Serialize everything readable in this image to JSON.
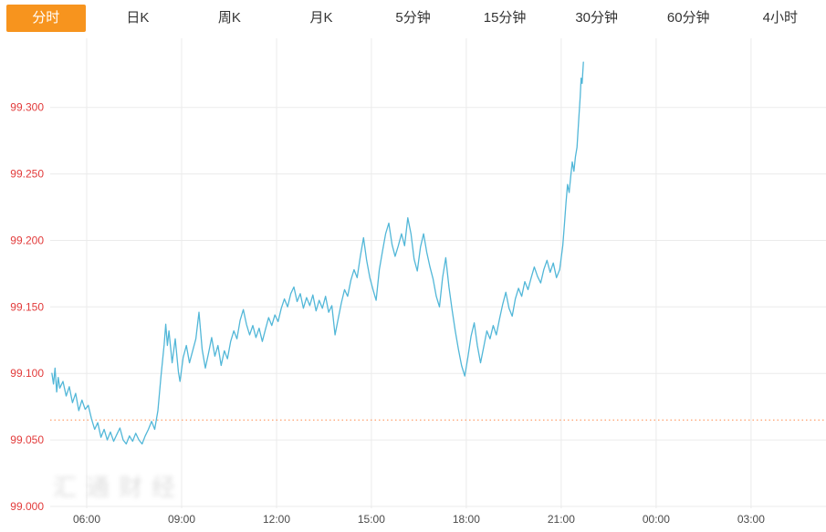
{
  "tabs": {
    "items": [
      {
        "name": "tab-timeline",
        "label": "分时",
        "active": true
      },
      {
        "name": "tab-day-k",
        "label": "日K",
        "active": false
      },
      {
        "name": "tab-week-k",
        "label": "周K",
        "active": false
      },
      {
        "name": "tab-month-k",
        "label": "月K",
        "active": false
      },
      {
        "name": "tab-5min",
        "label": "5分钟",
        "active": false
      },
      {
        "name": "tab-15min",
        "label": "15分钟",
        "active": false
      },
      {
        "name": "tab-30min",
        "label": "30分钟",
        "active": false
      },
      {
        "name": "tab-60min",
        "label": "60分钟",
        "active": false
      },
      {
        "name": "tab-4hour",
        "label": "4小时",
        "active": false
      }
    ]
  },
  "colors": {
    "accent_orange": "#f7941e",
    "y_label_red": "#e23b3b",
    "x_label": "#4a4a4a",
    "grid": "#ebebeb",
    "line_blue": "#52b7d8",
    "ref_dotted": "#ff8a4b"
  },
  "watermark": {
    "text": "汇通财经"
  },
  "chart_data": {
    "type": "line",
    "title": "",
    "xlabel": "",
    "ylabel": "",
    "grid": true,
    "x_unit": "hour-of-day (decimal, values > 24 are next day)",
    "xlim": [
      4.846,
      29.37
    ],
    "ylim": [
      99.0,
      99.343
    ],
    "x_ticks": [
      {
        "t": 6,
        "label": "06:00"
      },
      {
        "t": 9,
        "label": "09:00"
      },
      {
        "t": 12,
        "label": "12:00"
      },
      {
        "t": 15,
        "label": "15:00"
      },
      {
        "t": 18,
        "label": "18:00"
      },
      {
        "t": 21,
        "label": "21:00"
      },
      {
        "t": 24,
        "label": "00:00"
      },
      {
        "t": 27,
        "label": "03:00"
      }
    ],
    "y_ticks": [
      99.0,
      99.05,
      99.1,
      99.15,
      99.2,
      99.25,
      99.3
    ],
    "y_tick_labels": [
      "99.000",
      "99.050",
      "99.100",
      "99.150",
      "99.200",
      "99.250",
      "99.300"
    ],
    "reference_line": {
      "value": 99.065,
      "style": "dotted",
      "color": "#ff8a4b"
    },
    "series": [
      {
        "name": "price",
        "color": "#52b7d8",
        "points": [
          [
            4.9,
            99.1
          ],
          [
            4.95,
            99.092
          ],
          [
            5.0,
            99.104
          ],
          [
            5.05,
            99.086
          ],
          [
            5.1,
            99.097
          ],
          [
            5.15,
            99.089
          ],
          [
            5.25,
            99.094
          ],
          [
            5.35,
            99.083
          ],
          [
            5.45,
            99.09
          ],
          [
            5.55,
            99.078
          ],
          [
            5.65,
            99.085
          ],
          [
            5.75,
            99.072
          ],
          [
            5.85,
            99.08
          ],
          [
            5.95,
            99.073
          ],
          [
            6.05,
            99.076
          ],
          [
            6.15,
            99.066
          ],
          [
            6.25,
            99.058
          ],
          [
            6.35,
            99.063
          ],
          [
            6.45,
            99.052
          ],
          [
            6.55,
            99.058
          ],
          [
            6.65,
            99.05
          ],
          [
            6.75,
            99.056
          ],
          [
            6.85,
            99.049
          ],
          [
            6.95,
            99.054
          ],
          [
            7.05,
            99.059
          ],
          [
            7.15,
            99.05
          ],
          [
            7.25,
            99.047
          ],
          [
            7.35,
            99.053
          ],
          [
            7.45,
            99.049
          ],
          [
            7.55,
            99.055
          ],
          [
            7.65,
            99.05
          ],
          [
            7.75,
            99.047
          ],
          [
            7.85,
            99.053
          ],
          [
            7.95,
            99.058
          ],
          [
            8.05,
            99.064
          ],
          [
            8.15,
            99.058
          ],
          [
            8.25,
            99.072
          ],
          [
            8.35,
            99.098
          ],
          [
            8.45,
            99.122
          ],
          [
            8.5,
            99.137
          ],
          [
            8.55,
            99.121
          ],
          [
            8.6,
            99.132
          ],
          [
            8.7,
            99.108
          ],
          [
            8.8,
            99.126
          ],
          [
            8.9,
            99.101
          ],
          [
            8.95,
            99.094
          ],
          [
            9.05,
            99.112
          ],
          [
            9.15,
            99.121
          ],
          [
            9.25,
            99.108
          ],
          [
            9.35,
            99.117
          ],
          [
            9.45,
            99.126
          ],
          [
            9.55,
            99.146
          ],
          [
            9.65,
            99.118
          ],
          [
            9.75,
            99.104
          ],
          [
            9.85,
            99.115
          ],
          [
            9.95,
            99.127
          ],
          [
            10.05,
            99.113
          ],
          [
            10.15,
            99.121
          ],
          [
            10.25,
            99.106
          ],
          [
            10.35,
            99.117
          ],
          [
            10.45,
            99.111
          ],
          [
            10.55,
            99.124
          ],
          [
            10.65,
            99.132
          ],
          [
            10.75,
            99.126
          ],
          [
            10.85,
            99.14
          ],
          [
            10.95,
            99.148
          ],
          [
            11.05,
            99.137
          ],
          [
            11.15,
            99.129
          ],
          [
            11.25,
            99.136
          ],
          [
            11.35,
            99.127
          ],
          [
            11.45,
            99.134
          ],
          [
            11.55,
            99.124
          ],
          [
            11.65,
            99.133
          ],
          [
            11.75,
            99.142
          ],
          [
            11.85,
            99.136
          ],
          [
            11.95,
            99.144
          ],
          [
            12.05,
            99.139
          ],
          [
            12.15,
            99.149
          ],
          [
            12.25,
            99.156
          ],
          [
            12.35,
            99.15
          ],
          [
            12.45,
            99.16
          ],
          [
            12.55,
            99.165
          ],
          [
            12.65,
            99.154
          ],
          [
            12.75,
            99.16
          ],
          [
            12.85,
            99.149
          ],
          [
            12.95,
            99.157
          ],
          [
            13.05,
            99.151
          ],
          [
            13.15,
            99.159
          ],
          [
            13.25,
            99.147
          ],
          [
            13.35,
            99.155
          ],
          [
            13.45,
            99.149
          ],
          [
            13.55,
            99.158
          ],
          [
            13.65,
            99.146
          ],
          [
            13.75,
            99.151
          ],
          [
            13.85,
            99.129
          ],
          [
            13.95,
            99.141
          ],
          [
            14.05,
            99.153
          ],
          [
            14.15,
            99.163
          ],
          [
            14.25,
            99.158
          ],
          [
            14.35,
            99.17
          ],
          [
            14.45,
            99.178
          ],
          [
            14.55,
            99.172
          ],
          [
            14.65,
            99.188
          ],
          [
            14.75,
            99.202
          ],
          [
            14.85,
            99.185
          ],
          [
            14.95,
            99.172
          ],
          [
            15.05,
            99.163
          ],
          [
            15.15,
            99.155
          ],
          [
            15.25,
            99.178
          ],
          [
            15.35,
            99.192
          ],
          [
            15.45,
            99.205
          ],
          [
            15.55,
            99.213
          ],
          [
            15.65,
            99.197
          ],
          [
            15.75,
            99.188
          ],
          [
            15.85,
            99.196
          ],
          [
            15.95,
            99.205
          ],
          [
            16.05,
            99.196
          ],
          [
            16.15,
            99.217
          ],
          [
            16.25,
            99.205
          ],
          [
            16.35,
            99.186
          ],
          [
            16.45,
            99.177
          ],
          [
            16.55,
            99.195
          ],
          [
            16.65,
            99.205
          ],
          [
            16.75,
            99.191
          ],
          [
            16.85,
            99.18
          ],
          [
            16.95,
            99.171
          ],
          [
            17.05,
            99.158
          ],
          [
            17.15,
            99.15
          ],
          [
            17.25,
            99.172
          ],
          [
            17.35,
            99.187
          ],
          [
            17.45,
            99.165
          ],
          [
            17.55,
            99.148
          ],
          [
            17.65,
            99.132
          ],
          [
            17.75,
            99.118
          ],
          [
            17.85,
            99.106
          ],
          [
            17.95,
            99.098
          ],
          [
            18.05,
            99.112
          ],
          [
            18.15,
            99.128
          ],
          [
            18.25,
            99.138
          ],
          [
            18.35,
            99.121
          ],
          [
            18.45,
            99.108
          ],
          [
            18.55,
            99.12
          ],
          [
            18.65,
            99.132
          ],
          [
            18.75,
            99.126
          ],
          [
            18.85,
            99.136
          ],
          [
            18.95,
            99.129
          ],
          [
            19.05,
            99.141
          ],
          [
            19.15,
            99.152
          ],
          [
            19.25,
            99.161
          ],
          [
            19.35,
            99.149
          ],
          [
            19.45,
            99.143
          ],
          [
            19.55,
            99.156
          ],
          [
            19.65,
            99.164
          ],
          [
            19.75,
            99.158
          ],
          [
            19.85,
            99.169
          ],
          [
            19.95,
            99.163
          ],
          [
            20.05,
            99.172
          ],
          [
            20.15,
            99.18
          ],
          [
            20.25,
            99.173
          ],
          [
            20.35,
            99.168
          ],
          [
            20.45,
            99.178
          ],
          [
            20.55,
            99.185
          ],
          [
            20.65,
            99.176
          ],
          [
            20.75,
            99.183
          ],
          [
            20.85,
            99.172
          ],
          [
            20.95,
            99.178
          ],
          [
            21.05,
            99.196
          ],
          [
            21.1,
            99.212
          ],
          [
            21.15,
            99.228
          ],
          [
            21.2,
            99.242
          ],
          [
            21.25,
            99.236
          ],
          [
            21.3,
            99.248
          ],
          [
            21.35,
            99.259
          ],
          [
            21.4,
            99.252
          ],
          [
            21.45,
            99.263
          ],
          [
            21.5,
            99.27
          ],
          [
            21.55,
            99.29
          ],
          [
            21.6,
            99.308
          ],
          [
            21.63,
            99.322
          ],
          [
            21.66,
            99.318
          ],
          [
            21.7,
            99.334
          ]
        ]
      }
    ]
  }
}
